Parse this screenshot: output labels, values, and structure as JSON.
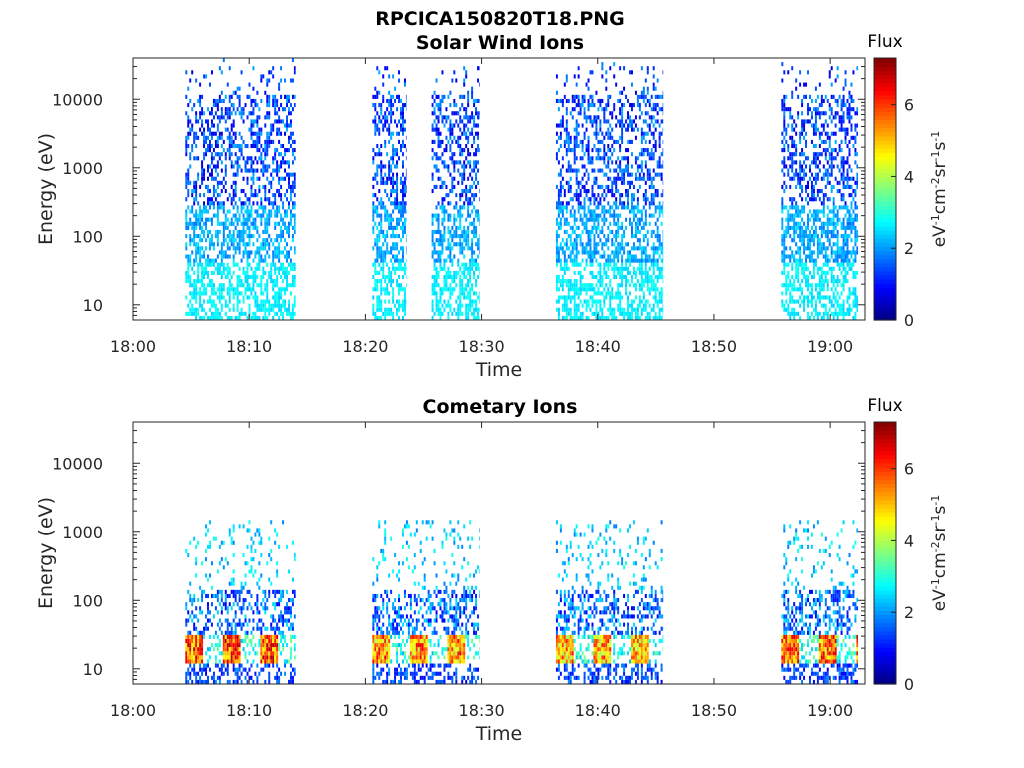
{
  "figure_title": "RPCICA150820T18.PNG",
  "chart_data": [
    {
      "type": "heatmap",
      "title": "Solar Wind Ions",
      "xlabel": "Time",
      "ylabel": "Energy (eV)",
      "x_tick_labels": [
        "18:00",
        "18:10",
        "18:20",
        "18:30",
        "18:40",
        "18:50",
        "19:00"
      ],
      "x_tick_minutes": [
        0,
        10,
        20,
        30,
        40,
        50,
        60
      ],
      "xlim_minutes": [
        0,
        63
      ],
      "y_scale": "log",
      "y_tick_labels": [
        "10",
        "100",
        "1000",
        "10000"
      ],
      "y_tick_values": [
        10,
        100,
        1000,
        10000
      ],
      "ylim": [
        6,
        40000
      ],
      "colorbar": {
        "title": "Flux",
        "label": "eV-1cm-2sr-1s-1",
        "range": [
          0,
          7.3
        ],
        "tick_labels": [
          "0",
          "2",
          "4",
          "6"
        ],
        "tick_values": [
          0,
          2,
          4,
          6
        ],
        "colormap": "jet"
      },
      "bursts": [
        {
          "start_min": 4.5,
          "end_min": 14,
          "log_flux_range": [
            1.0,
            2.9
          ]
        },
        {
          "start_min": 20.6,
          "end_min": 23.5,
          "log_flux_range": [
            1.0,
            2.9
          ]
        },
        {
          "start_min": 25.7,
          "end_min": 29.8,
          "log_flux_range": [
            1.0,
            2.9
          ]
        },
        {
          "start_min": 36.4,
          "end_min": 45.6,
          "log_flux_range": [
            1.0,
            2.9
          ]
        },
        {
          "start_min": 55.8,
          "end_min": 62.4,
          "log_flux_range": [
            1.0,
            2.9
          ]
        }
      ]
    },
    {
      "type": "heatmap",
      "title": "Cometary Ions",
      "xlabel": "Time",
      "ylabel": "Energy (eV)",
      "x_tick_labels": [
        "18:00",
        "18:10",
        "18:20",
        "18:30",
        "18:40",
        "18:50",
        "19:00"
      ],
      "x_tick_minutes": [
        0,
        10,
        20,
        30,
        40,
        50,
        60
      ],
      "xlim_minutes": [
        0,
        63
      ],
      "y_scale": "log",
      "y_tick_labels": [
        "10",
        "100",
        "1000",
        "10000"
      ],
      "y_tick_values": [
        10,
        100,
        1000,
        10000
      ],
      "ylim": [
        6,
        40000
      ],
      "colorbar": {
        "title": "Flux",
        "label": "eV-1cm-2sr-1s-1",
        "range": [
          0,
          7.3
        ],
        "tick_labels": [
          "0",
          "2",
          "4",
          "6"
        ],
        "tick_values": [
          0,
          2,
          4,
          6
        ],
        "colormap": "jet"
      },
      "bursts": [
        {
          "start_min": 4.5,
          "end_min": 14,
          "peak_flux": 7.0,
          "peak_energy_range": [
            12,
            30
          ]
        },
        {
          "start_min": 20.6,
          "end_min": 29.8,
          "peak_flux": 6.5,
          "peak_energy_range": [
            12,
            30
          ]
        },
        {
          "start_min": 36.4,
          "end_min": 45.6,
          "peak_flux": 6.3,
          "peak_energy_range": [
            12,
            30
          ]
        },
        {
          "start_min": 55.8,
          "end_min": 62.4,
          "peak_flux": 6.8,
          "peak_energy_range": [
            12,
            30
          ]
        }
      ]
    }
  ]
}
